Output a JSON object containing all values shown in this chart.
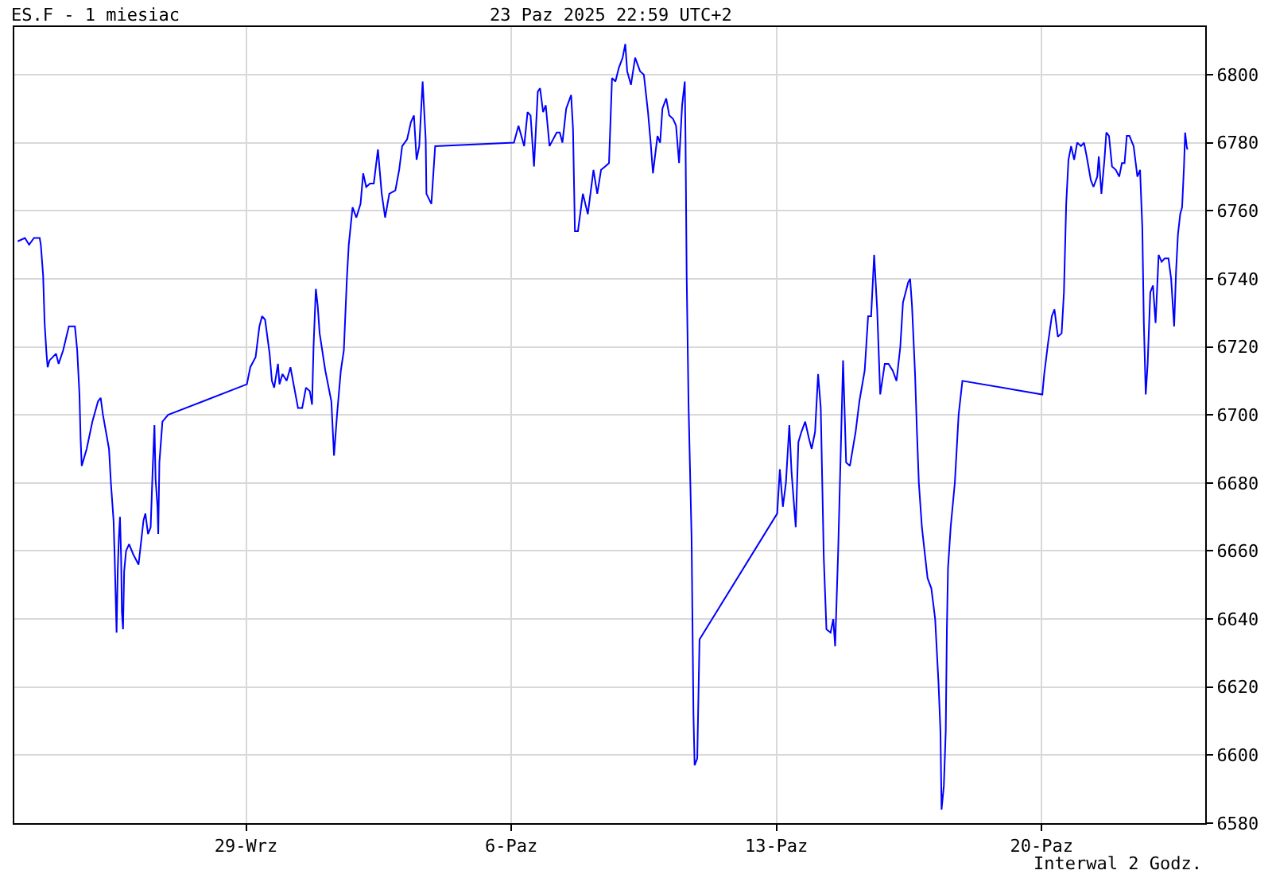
{
  "chart_data": {
    "type": "line",
    "title": "ES.F - 1 miesiac",
    "subtitle": "23 Paz 2025 22:59 UTC+2",
    "annotations": [
      "Interwal 2 Godz."
    ],
    "xlim": [
      "2025-09-22T21:07",
      "2025-10-24T07:41"
    ],
    "ylim": [
      6580,
      6814
    ],
    "xticks": [
      {
        "value": "2025-09-29",
        "label": "29-Wrz"
      },
      {
        "value": "2025-10-06",
        "label": "6-Paz"
      },
      {
        "value": "2025-10-13",
        "label": "13-Paz"
      },
      {
        "value": "2025-10-20",
        "label": "20-Paz"
      }
    ],
    "yticks": [
      6580,
      6600,
      6620,
      6640,
      6660,
      6680,
      6700,
      6720,
      6740,
      6760,
      6780,
      6800
    ],
    "grid": true,
    "marker": "none",
    "line_style": "solid",
    "series": [
      {
        "color": "#0000ff",
        "x": [
          "2025-09-22T23:17",
          "2025-09-23T03:50",
          "2025-09-23T06:29",
          "2025-09-23T09:36",
          "2025-09-23T13:12",
          "2025-09-23T13:55",
          "2025-09-23T15:22",
          "2025-09-23T16:19",
          "2025-09-23T17:31",
          "2025-09-23T18:14",
          "2025-09-23T19:26",
          "2025-09-23T23:31",
          "2025-09-24T01:12",
          "2025-09-24T04:05",
          "2025-09-24T07:41",
          "2025-09-24T11:31",
          "2025-09-24T12:58",
          "2025-09-24T14:24",
          "2025-09-24T15:07",
          "2025-09-24T15:50",
          "2025-09-24T18:58",
          "2025-09-24T22:34",
          "2025-09-25T02:10",
          "2025-09-25T03:50",
          "2025-09-25T05:17",
          "2025-09-25T09:07",
          "2025-09-25T10:19",
          "2025-09-25T12:00",
          "2025-09-25T12:43",
          "2025-09-25T13:55",
          "2025-09-25T14:38",
          "2025-09-25T15:22",
          "2025-09-25T16:05",
          "2025-09-25T16:48",
          "2025-09-25T17:17",
          "2025-09-25T18:00",
          "2025-09-25T18:43",
          "2025-09-25T19:55",
          "2025-09-25T21:50",
          "2025-09-26T00:29",
          "2025-09-26T03:50",
          "2025-09-26T06:58",
          "2025-09-26T08:10",
          "2025-09-26T09:50",
          "2025-09-26T11:31",
          "2025-09-26T12:43",
          "2025-09-26T13:55",
          "2025-09-26T14:38",
          "2025-09-26T15:50",
          "2025-09-26T16:19",
          "2025-09-26T17:02",
          "2025-09-26T18:58",
          "2025-09-26T22:34",
          "2025-09-29T00:29",
          "2025-09-29T02:38",
          "2025-09-29T06:00",
          "2025-09-29T08:24",
          "2025-09-29T10:05",
          "2025-09-29T12:00",
          "2025-09-29T14:53",
          "2025-09-29T16:19",
          "2025-09-29T17:46",
          "2025-09-29T20:10",
          "2025-09-29T21:07",
          "2025-09-29T23:02",
          "2025-09-30T01:41",
          "2025-09-30T04:05",
          "2025-09-30T06:29",
          "2025-09-30T08:53",
          "2025-09-30T11:31",
          "2025-09-30T13:55",
          "2025-09-30T16:19",
          "2025-09-30T17:46",
          "2025-09-30T18:43",
          "2025-09-30T20:10",
          "2025-09-30T21:22",
          "2025-09-30T22:34",
          "2025-10-01T02:10",
          "2025-10-01T06:00",
          "2025-10-01T07:41",
          "2025-10-01T09:36",
          "2025-10-01T12:00",
          "2025-10-01T13:55",
          "2025-10-01T15:50",
          "2025-10-01T17:02",
          "2025-10-01T19:26",
          "2025-10-01T21:50",
          "2025-10-02T00:29",
          "2025-10-02T02:10",
          "2025-10-02T04:05",
          "2025-10-02T06:29",
          "2025-10-02T08:53",
          "2025-10-02T11:31",
          "2025-10-02T13:55",
          "2025-10-02T16:05",
          "2025-10-02T18:43",
          "2025-10-02T22:34",
          "2025-10-03T00:58",
          "2025-10-03T02:53",
          "2025-10-03T06:00",
          "2025-10-03T08:24",
          "2025-10-03T10:19",
          "2025-10-03T12:00",
          "2025-10-03T13:41",
          "2025-10-03T15:50",
          "2025-10-03T17:46",
          "2025-10-03T18:14",
          "2025-10-03T21:22",
          "2025-10-03T23:46",
          "2025-10-06T01:41",
          "2025-10-06T04:34",
          "2025-10-06T08:10",
          "2025-10-06T10:19",
          "2025-10-06T12:14",
          "2025-10-06T14:24",
          "2025-10-06T16:48",
          "2025-10-06T18:14",
          "2025-10-06T20:10",
          "2025-10-06T21:50",
          "2025-10-07T00:14",
          "2025-10-07T04:48",
          "2025-10-07T06:43",
          "2025-10-07T08:24",
          "2025-10-07T10:48",
          "2025-10-07T13:55",
          "2025-10-07T15:07",
          "2025-10-07T16:19",
          "2025-10-07T18:14",
          "2025-10-07T21:22",
          "2025-10-08T00:29",
          "2025-10-08T04:05",
          "2025-10-08T06:29",
          "2025-10-08T08:53",
          "2025-10-08T11:31",
          "2025-10-08T13:55",
          "2025-10-08T15:50",
          "2025-10-08T18:00",
          "2025-10-08T20:10",
          "2025-10-08T22:34",
          "2025-10-09T00:14",
          "2025-10-09T01:26",
          "2025-10-09T03:50",
          "2025-10-09T06:29",
          "2025-10-09T09:36",
          "2025-10-09T12:00",
          "2025-10-09T14:38",
          "2025-10-09T16:19",
          "2025-10-09T17:46",
          "2025-10-09T20:38",
          "2025-10-09T22:19",
          "2025-10-09T23:46",
          "2025-10-10T02:10",
          "2025-10-10T04:05",
          "2025-10-10T06:29",
          "2025-10-10T08:24",
          "2025-10-10T10:19",
          "2025-10-10T12:14",
          "2025-10-10T13:55",
          "2025-10-10T14:24",
          "2025-10-10T15:07",
          "2025-10-10T16:19",
          "2025-10-10T18:14",
          "2025-10-10T19:26",
          "2025-10-10T20:10",
          "2025-10-10T21:50",
          "2025-10-10T23:17",
          "2025-10-13T00:29",
          "2025-10-13T02:10",
          "2025-10-13T04:05",
          "2025-10-13T06:00",
          "2025-10-13T08:10",
          "2025-10-13T09:36",
          "2025-10-13T12:14",
          "2025-10-13T13:55",
          "2025-10-13T15:50",
          "2025-10-13T18:14",
          "2025-10-13T20:38",
          "2025-10-13T22:19",
          "2025-10-14T00:29",
          "2025-10-14T02:24",
          "2025-10-14T04:05",
          "2025-10-14T06:00",
          "2025-10-14T07:41",
          "2025-10-14T10:19",
          "2025-10-14T12:00",
          "2025-10-14T13:12",
          "2025-10-14T15:07",
          "2025-10-14T18:14",
          "2025-10-14T20:10",
          "2025-10-14T22:34",
          "2025-10-15T02:10",
          "2025-10-15T04:34",
          "2025-10-15T07:55",
          "2025-10-15T10:05",
          "2025-10-15T12:00",
          "2025-10-15T13:55",
          "2025-10-15T15:50",
          "2025-10-15T17:46",
          "2025-10-15T20:38",
          "2025-10-15T23:02",
          "2025-10-16T01:41",
          "2025-10-16T04:05",
          "2025-10-16T06:29",
          "2025-10-16T08:10",
          "2025-10-16T11:31",
          "2025-10-16T12:43",
          "2025-10-16T13:55",
          "2025-10-16T15:50",
          "2025-10-16T17:02",
          "2025-10-16T18:14",
          "2025-10-16T20:10",
          "2025-10-16T21:50",
          "2025-10-16T23:46",
          "2025-10-17T02:10",
          "2025-10-17T04:34",
          "2025-10-17T06:43",
          "2025-10-17T07:55",
          "2025-10-17T08:38",
          "2025-10-17T10:05",
          "2025-10-17T11:17",
          "2025-10-17T12:00",
          "2025-10-17T12:43",
          "2025-10-17T14:24",
          "2025-10-17T17:02",
          "2025-10-17T19:26",
          "2025-10-17T21:50",
          "2025-10-20T00:29",
          "2025-10-20T01:41",
          "2025-10-20T04:05",
          "2025-10-20T06:29",
          "2025-10-20T08:10",
          "2025-10-20T10:19",
          "2025-10-20T12:43",
          "2025-10-20T14:10",
          "2025-10-20T15:36",
          "2025-10-20T17:02",
          "2025-10-20T18:43",
          "2025-10-20T20:38",
          "2025-10-20T22:34",
          "2025-10-21T00:58",
          "2025-10-21T02:53",
          "2025-10-21T04:34",
          "2025-10-21T07:12",
          "2025-10-21T08:53",
          "2025-10-21T11:17",
          "2025-10-21T12:14",
          "2025-10-21T13:55",
          "2025-10-21T15:50",
          "2025-10-21T17:02",
          "2025-10-21T18:43",
          "2025-10-21T20:38",
          "2025-10-21T23:02",
          "2025-10-22T01:12",
          "2025-10-22T02:53",
          "2025-10-22T04:34",
          "2025-10-22T06:00",
          "2025-10-22T07:41",
          "2025-10-22T10:19",
          "2025-10-22T12:43",
          "2025-10-22T14:24",
          "2025-10-22T15:50",
          "2025-10-22T16:48",
          "2025-10-22T18:00",
          "2025-10-22T19:12",
          "2025-10-22T20:53",
          "2025-10-22T22:34",
          "2025-10-23T00:14",
          "2025-10-23T02:10",
          "2025-10-23T04:05",
          "2025-10-23T06:00",
          "2025-10-23T08:24",
          "2025-10-23T10:05",
          "2025-10-23T12:00",
          "2025-10-23T13:12",
          "2025-10-23T14:24",
          "2025-10-23T15:50",
          "2025-10-23T17:02",
          "2025-10-23T18:14",
          "2025-10-23T18:58",
          "2025-10-23T19:55",
          "2025-10-23T20:24"
        ],
        "values": [
          6751,
          6752,
          6750,
          6752,
          6752,
          6750,
          6741,
          6727,
          6718,
          6714,
          6716,
          6718,
          6715,
          6719,
          6726,
          6726,
          6719,
          6706,
          6693,
          6685,
          6690,
          6698,
          6704,
          6705,
          6700,
          6690,
          6680,
          6669,
          6658,
          6636,
          6654,
          6664,
          6670,
          6658,
          6642,
          6637,
          6654,
          6660,
          6662,
          6659,
          6656,
          6669,
          6671,
          6665,
          6667,
          6683,
          6697,
          6681,
          6673,
          6665,
          6686,
          6698,
          6700,
          6709,
          6714,
          6717,
          6726,
          6729,
          6728,
          6718,
          6710,
          6708,
          6715,
          6709,
          6712,
          6710,
          6714,
          6708,
          6702,
          6702,
          6708,
          6707,
          6703,
          6720,
          6737,
          6732,
          6724,
          6713,
          6704,
          6688,
          6700,
          6713,
          6719,
          6740,
          6750,
          6761,
          6758,
          6762,
          6771,
          6767,
          6768,
          6768,
          6778,
          6765,
          6758,
          6765,
          6766,
          6772,
          6779,
          6781,
          6786,
          6788,
          6775,
          6779,
          6798,
          6781,
          6765,
          6762,
          6779,
          6780,
          6785,
          6779,
          6789,
          6788,
          6773,
          6795,
          6796,
          6789,
          6791,
          6779,
          6783,
          6783,
          6780,
          6790,
          6794,
          6784,
          6754,
          6754,
          6765,
          6759,
          6772,
          6765,
          6772,
          6773,
          6774,
          6799,
          6798,
          6802,
          6805,
          6809,
          6801,
          6797,
          6805,
          6801,
          6800,
          6789,
          6780,
          6771,
          6782,
          6780,
          6790,
          6793,
          6788,
          6787,
          6785,
          6774,
          6791,
          6798,
          6781,
          6741,
          6703,
          6664,
          6612,
          6597,
          6599,
          6634,
          6671,
          6684,
          6673,
          6680,
          6697,
          6683,
          6667,
          6692,
          6695,
          6698,
          6693,
          6690,
          6695,
          6712,
          6702,
          6658,
          6637,
          6636,
          6640,
          6632,
          6660,
          6716,
          6686,
          6685,
          6695,
          6704,
          6713,
          6729,
          6729,
          6747,
          6731,
          6706,
          6715,
          6715,
          6713,
          6710,
          6720,
          6733,
          6739,
          6740,
          6732,
          6712,
          6695,
          6680,
          6667,
          6660,
          6652,
          6649,
          6640,
          6621,
          6607,
          6584,
          6591,
          6607,
          6637,
          6655,
          6667,
          6680,
          6700,
          6710,
          6706,
          6712,
          6721,
          6729,
          6731,
          6723,
          6724,
          6736,
          6762,
          6775,
          6779,
          6775,
          6780,
          6779,
          6780,
          6776,
          6769,
          6767,
          6770,
          6776,
          6765,
          6775,
          6783,
          6782,
          6773,
          6772,
          6770,
          6774,
          6774,
          6782,
          6782,
          6779,
          6770,
          6772,
          6755,
          6727,
          6706,
          6715,
          6736,
          6738,
          6727,
          6747,
          6745,
          6746,
          6746,
          6740,
          6726,
          6742,
          6753,
          6759,
          6761,
          6773,
          6783,
          6779,
          6778
        ]
      }
    ]
  }
}
